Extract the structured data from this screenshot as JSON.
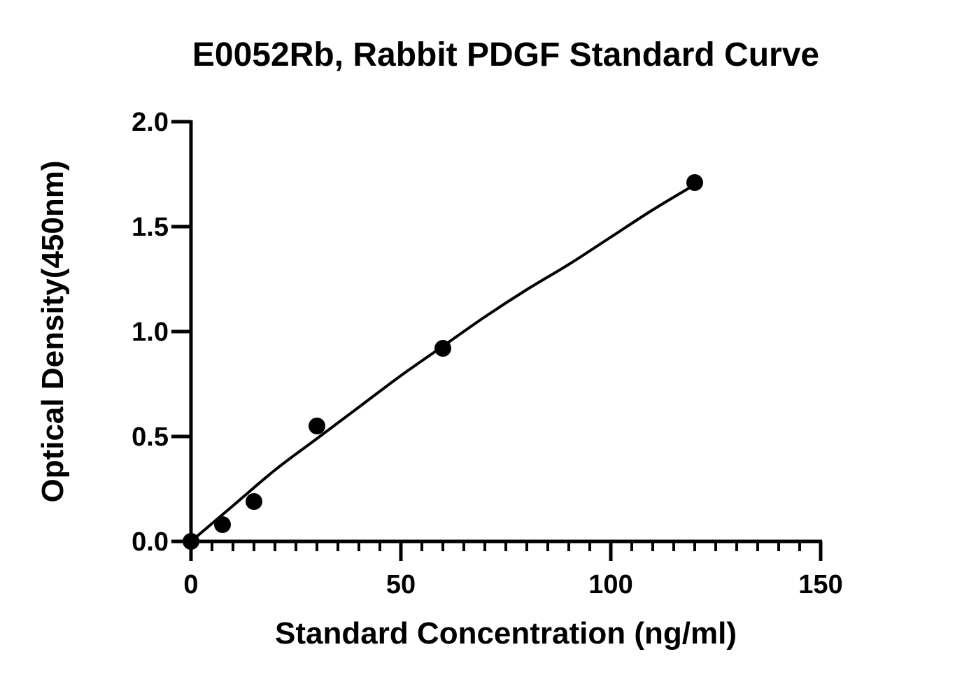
{
  "chart_data": {
    "type": "scatter",
    "title": "E0052Rb, Rabbit PDGF Standard Curve",
    "xlabel": "Standard Concentration (ng/ml)",
    "ylabel": "Optical Density(450nm)",
    "xlim": [
      0,
      150
    ],
    "ylim": [
      0,
      2.0
    ],
    "x_ticks": [
      0,
      50,
      100,
      150
    ],
    "x_tick_labels": [
      "0",
      "50",
      "100",
      "150"
    ],
    "y_ticks": [
      0,
      0.5,
      1.0,
      1.5,
      2.0
    ],
    "y_tick_labels": [
      "0.0",
      "0.5",
      "1.0",
      "1.5",
      "2.0"
    ],
    "x_minor_tick_step": 5,
    "grid": false,
    "series": [
      {
        "points": [
          {
            "x": 0,
            "y": 0.0
          },
          {
            "x": 7.5,
            "y": 0.08
          },
          {
            "x": 15,
            "y": 0.19
          },
          {
            "x": 30,
            "y": 0.55
          },
          {
            "x": 60,
            "y": 0.92
          },
          {
            "x": 120,
            "y": 1.71
          }
        ],
        "marker_color": "#000000",
        "fit_curve": {
          "x": [
            0,
            10,
            20,
            30,
            40,
            50,
            60,
            70,
            80,
            90,
            100,
            110,
            120
          ],
          "y": [
            0.0,
            0.17,
            0.34,
            0.49,
            0.64,
            0.79,
            0.93,
            1.07,
            1.2,
            1.32,
            1.45,
            1.58,
            1.7
          ]
        },
        "line_color": "#000000"
      }
    ]
  }
}
